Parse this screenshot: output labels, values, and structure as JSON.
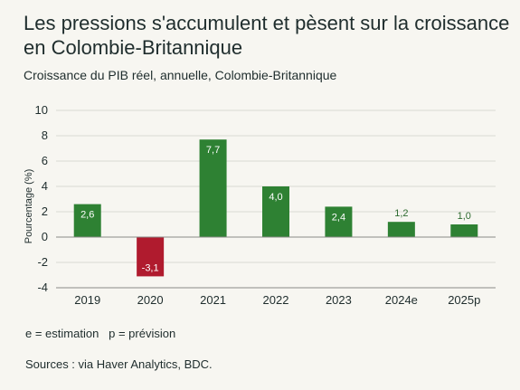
{
  "header": {
    "title": "Les pressions s'accumulent et pèsent sur la croissance en Colombie-Britannique",
    "subtitle": "Croissance du PIB réel, annuelle, Colombie-Britannique"
  },
  "footer": {
    "legend_note": "e = estimation   p = prévision",
    "sources": "Sources : via Haver Analytics, BDC."
  },
  "colors": {
    "positive": "#2e8133",
    "negative": "#b01b2e",
    "grid": "#d9d9d3",
    "zero_line": "#8a8a86"
  },
  "chart_data": {
    "type": "bar",
    "title": "Les pressions s'accumulent et pèsent sur la croissance en Colombie-Britannique",
    "subtitle": "Croissance du PIB réel, annuelle, Colombie-Britannique",
    "xlabel": "",
    "ylabel": "Pourcentage (%)",
    "ylim": [
      -4,
      10
    ],
    "yticks": [
      -4,
      -2,
      0,
      2,
      4,
      6,
      8,
      10
    ],
    "grid": true,
    "categories": [
      "2019",
      "2020",
      "2021",
      "2022",
      "2023",
      "2024e",
      "2025p"
    ],
    "values": [
      2.6,
      -3.1,
      7.7,
      4.0,
      2.4,
      1.2,
      1.0
    ],
    "data_labels": [
      "2,6",
      "-3,1",
      "7,7",
      "4,0",
      "2,4",
      "1,2",
      "1,0"
    ]
  }
}
